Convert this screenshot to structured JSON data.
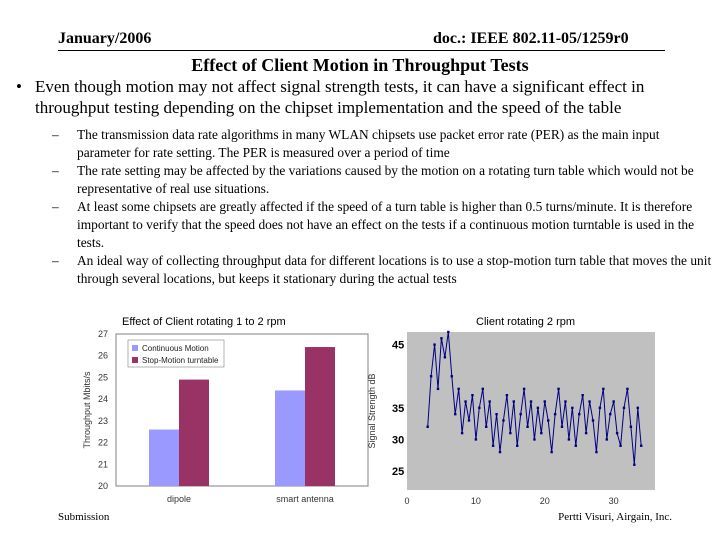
{
  "header": {
    "date": "January/2006",
    "doc": "doc.: IEEE 802.11-05/1259r0"
  },
  "title": "Effect of Client Motion in Throughput Tests",
  "bullet": {
    "marker": "•",
    "text": "Even though motion may not affect signal strength tests, it can have a significant effect in throughput testing depending on the chipset implementation and the speed of the table"
  },
  "dash": "–",
  "subbullets": [
    "The transmission data rate algorithms in many WLAN chipsets use packet error rate (PER) as the main input parameter for rate setting. The PER is measured over a period of time",
    "The rate setting may be affected by the variations caused by the motion on a rotating turn table which would not be representative of real use situations.",
    "At least some chipsets are greatly affected if the speed of a turn table is higher than 0.5 turns/minute. It is therefore important to verify that the speed does not have an effect on the tests if a continuous motion turntable is used in the tests.",
    "An ideal way of collecting throughput data for different locations is to use a stop-motion turn table that moves the unit through several locations, but keeps it stationary during the actual tests"
  ],
  "footer": {
    "left": "Submission",
    "right": "Pertti Visuri, Airgain, Inc."
  },
  "colors": {
    "continuous": "#9999ff",
    "stop_motion": "#993366",
    "plot_bg": "#c0c0c0",
    "line": "#000080"
  },
  "chart_data": [
    {
      "type": "bar",
      "title": "Effect of Client rotating 1 to 2 rpm",
      "categories": [
        "dipole",
        "smart antenna"
      ],
      "series": [
        {
          "name": "Continuous Motion",
          "values": [
            22.6,
            24.4
          ]
        },
        {
          "name": "Stop-Motion turntable",
          "values": [
            24.9,
            26.4
          ]
        }
      ],
      "ylabel": "Throughput Mbits/s",
      "xlabel": "",
      "ylim": [
        20,
        27
      ],
      "yticks": [
        27,
        26,
        25,
        24,
        23,
        22,
        21,
        20
      ]
    },
    {
      "type": "line",
      "title": "Client rotating 2 rpm",
      "ylabel": "Signal Strength dB",
      "xlabel": "",
      "xlim": [
        0,
        36
      ],
      "ylim": [
        22,
        47
      ],
      "xticks": [
        0,
        10,
        20,
        30
      ],
      "yticks": [
        45,
        35,
        30,
        25
      ],
      "series": [
        {
          "name": "Signal Strength",
          "x": [
            3,
            3.5,
            4,
            4.5,
            5,
            5.5,
            6,
            6.5,
            7,
            7.5,
            8,
            8.5,
            9,
            9.5,
            10,
            10.5,
            11,
            11.5,
            12,
            12.5,
            13,
            13.5,
            14,
            14.5,
            15,
            15.5,
            16,
            16.5,
            17,
            17.5,
            18,
            18.5,
            19,
            19.5,
            20,
            20.5,
            21,
            21.5,
            22,
            22.5,
            23,
            23.5,
            24,
            24.5,
            25,
            25.5,
            26,
            26.5,
            27,
            27.5,
            28,
            28.5,
            29,
            29.5,
            30,
            30.5,
            31,
            31.5,
            32,
            32.5,
            33,
            33.5,
            34
          ],
          "values": [
            32,
            40,
            45,
            38,
            46,
            43,
            47,
            40,
            34,
            38,
            31,
            36,
            33,
            37,
            30,
            35,
            38,
            32,
            36,
            29,
            34,
            28,
            33,
            37,
            31,
            36,
            29,
            34,
            38,
            32,
            36,
            30,
            35,
            31,
            36,
            33,
            28,
            34,
            38,
            32,
            36,
            30,
            35,
            29,
            34,
            37,
            31,
            36,
            33,
            28,
            35,
            38,
            30,
            34,
            36,
            31,
            29,
            35,
            38,
            32,
            26,
            35,
            29
          ]
        }
      ]
    }
  ]
}
